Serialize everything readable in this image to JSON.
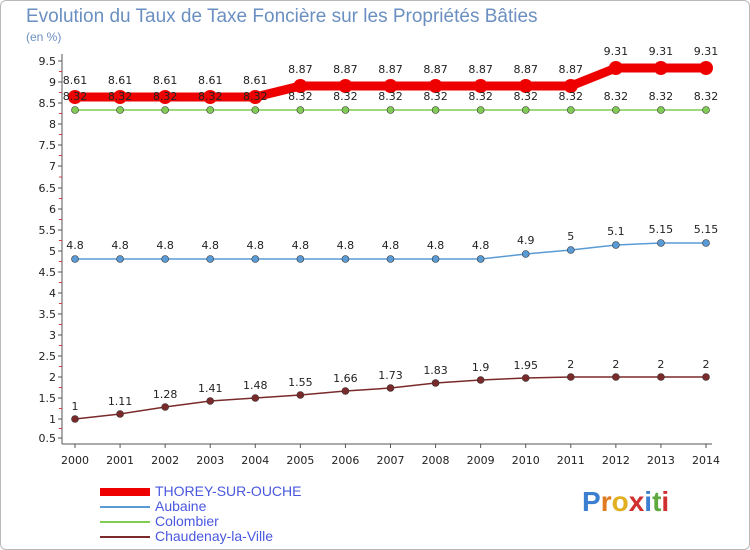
{
  "chart_data": {
    "type": "line",
    "title": "Evolution du Taux de Taxe Foncière sur les Propriétés Bâties",
    "subtitle": "(en %)",
    "xlabel": "",
    "ylabel": "(en %)",
    "categories": [
      "2000",
      "2001",
      "2002",
      "2003",
      "2004",
      "2005",
      "2006",
      "2007",
      "2008",
      "2009",
      "2010",
      "2011",
      "2012",
      "2013",
      "2014"
    ],
    "ylim": [
      0.5,
      9.5
    ],
    "grid": false,
    "yticks": [
      "0.5",
      "1",
      "1.5",
      "2",
      "2.5",
      "3",
      "3.5",
      "4",
      "4.5",
      "5",
      "5.5",
      "6",
      "6.5",
      "7",
      "7.5",
      "8",
      "8.5",
      "9",
      "9.5"
    ],
    "yticks_display": [
      "0.5",
      "1",
      "1.5",
      "2",
      "2.5",
      "3",
      "3.5",
      "4",
      "4.5",
      "5",
      "5.5",
      "6",
      "6.5",
      "7",
      "7.5",
      "8",
      "8.5",
      "9",
      "9.5"
    ],
    "series": [
      {
        "name": "THOREY-SUR-OUCHE",
        "color": "#ee0000",
        "width": 9,
        "values": [
          8.61,
          8.61,
          8.61,
          8.61,
          8.61,
          8.87,
          8.87,
          8.87,
          8.87,
          8.87,
          8.87,
          8.87,
          9.31,
          9.31,
          9.31
        ],
        "labels": [
          "8.61",
          "8.61",
          "8.61",
          "8.61",
          "8.61",
          "8.87",
          "8.87",
          "8.87",
          "8.87",
          "8.87",
          "8.87",
          "8.87",
          "9.31",
          "9.31",
          "9.31"
        ]
      },
      {
        "name": "Aubaine",
        "color": "#5a9bd5",
        "width": 1.5,
        "values": [
          4.8,
          4.8,
          4.8,
          4.8,
          4.8,
          4.8,
          4.8,
          4.8,
          4.8,
          4.8,
          4.9,
          5,
          5.1,
          5.15,
          5.15
        ],
        "labels": [
          "4.8",
          "4.8",
          "4.8",
          "4.8",
          "4.8",
          "4.8",
          "4.8",
          "4.8",
          "4.8",
          "4.8",
          "4.9",
          "5",
          "5.1",
          "5.15",
          "5.15"
        ]
      },
      {
        "name": "Colombier",
        "color": "#80cc55",
        "width": 1.5,
        "values": [
          8.32,
          8.32,
          8.32,
          8.32,
          8.32,
          8.32,
          8.32,
          8.32,
          8.32,
          8.32,
          8.32,
          8.32,
          8.32,
          8.32,
          8.32
        ],
        "labels": [
          "8.32",
          "8.32",
          "8.32",
          "8.32",
          "8.32",
          "8.32",
          "8.32",
          "8.32",
          "8.32",
          "8.32",
          "8.32",
          "8.32",
          "8.32",
          "8.32",
          "8.32"
        ]
      },
      {
        "name": "Chaudenay-la-Ville",
        "color": "#7a2a2a",
        "width": 1.5,
        "values": [
          1,
          1.11,
          1.28,
          1.41,
          1.48,
          1.55,
          1.66,
          1.73,
          1.83,
          1.9,
          1.95,
          2,
          2,
          2,
          2
        ],
        "labels": [
          "1",
          "1.11",
          "1.28",
          "1.41",
          "1.48",
          "1.55",
          "1.66",
          "1.73",
          "1.83",
          "1.9",
          "1.95",
          "2",
          "2",
          "2",
          "2"
        ]
      }
    ]
  },
  "logo": {
    "letters": [
      "P",
      "r",
      "o",
      "x",
      "i",
      "t",
      "i"
    ],
    "colors": [
      "#3a7fd0",
      "#e07c20",
      "#e0b020",
      "#d03030",
      "#3a7fd0",
      "#60a840",
      "#d03030"
    ]
  }
}
